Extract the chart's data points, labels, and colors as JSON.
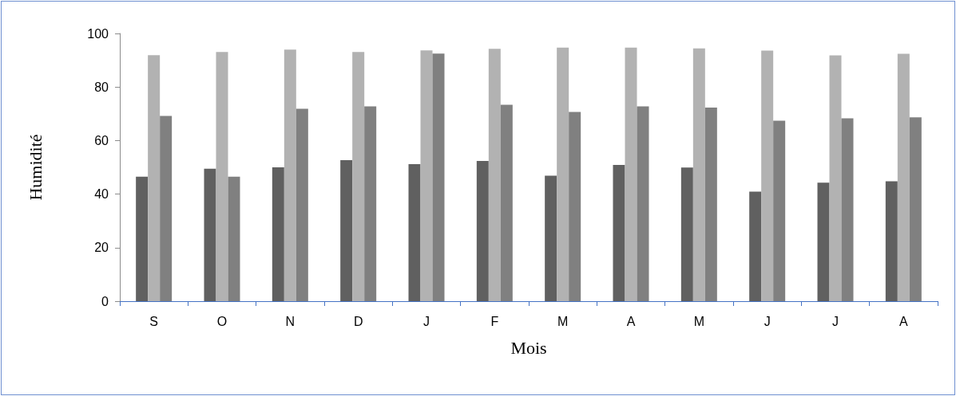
{
  "chart_data": {
    "type": "bar",
    "xlabel": "Mois",
    "ylabel": "Humidité",
    "categories": [
      "S",
      "O",
      "N",
      "D",
      "J",
      "F",
      "M",
      "A",
      "M",
      "J",
      "J",
      "A"
    ],
    "series": [
      {
        "color": "#606060",
        "values": [
          46.5,
          49.5,
          50.0,
          52.7,
          51.2,
          52.4,
          46.9,
          50.9,
          49.9,
          40.9,
          44.3,
          44.8
        ]
      },
      {
        "color": "#b2b2b2",
        "values": [
          91.9,
          93.1,
          94.0,
          93.1,
          93.7,
          94.3,
          94.7,
          94.7,
          94.4,
          93.6,
          91.8,
          92.4
        ]
      },
      {
        "color": "#808080",
        "values": [
          69.2,
          46.5,
          71.9,
          72.8,
          92.5,
          73.4,
          70.7,
          72.8,
          72.3,
          67.4,
          68.3,
          68.7
        ]
      }
    ],
    "ylim": [
      0,
      100
    ],
    "yticks": [
      0,
      20,
      40,
      60,
      80,
      100
    ],
    "grid": false
  }
}
